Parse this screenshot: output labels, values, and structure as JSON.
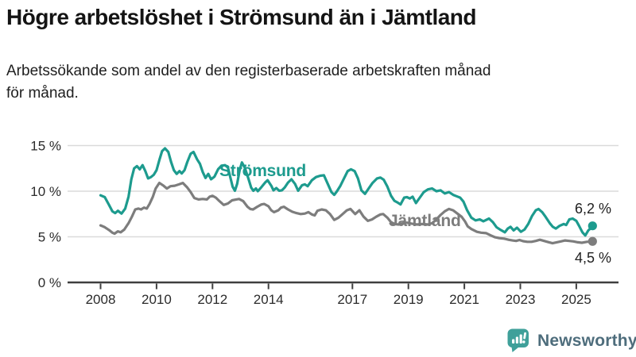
{
  "header": {
    "title": "Högre arbetslöshet i Strömsund än i Jämtland",
    "subtitle_line1": "Arbetssökande som andel av den registerbaserade arbetskraften månad",
    "subtitle_line2": "för månad."
  },
  "footer": {
    "logo_text": "Newsworthy",
    "logo_icon": "bar-chart-speech-bubble-icon",
    "logo_icon_color": "#3fa09a",
    "logo_text_color": "#4e6d7c"
  },
  "colors": {
    "accent_teal": "#1d9b8e",
    "series_gray": "#7d7d7d",
    "gridline": "#dadada",
    "axis": "#3f3f3f",
    "tick_text": "#2b2b2b",
    "title_text": "#141414"
  },
  "chart_data": {
    "type": "line",
    "title": "Högre arbetslöshet i Strömsund än i Jämtland",
    "subtitle": "Arbetssökande som andel av den registerbaserade arbetskraften månad för månad.",
    "unit": "%",
    "grid": true,
    "legend_position": "inline-labels",
    "x_axis": {
      "range": [
        2008.0,
        2026.0
      ],
      "ticks": [
        2008,
        2010,
        2012,
        2014,
        2017,
        2019,
        2021,
        2023,
        2025
      ]
    },
    "y_axis": {
      "range": [
        0,
        15
      ],
      "ticks": [
        {
          "value": 0,
          "label": "0 %"
        },
        {
          "value": 5,
          "label": "5 %"
        },
        {
          "value": 10,
          "label": "10 %"
        },
        {
          "value": 15,
          "label": "15 %"
        }
      ]
    },
    "series": [
      {
        "name": "Strömsund",
        "color": "#1d9b8e",
        "end_label": "6,2 %",
        "end_value": 6.2,
        "points": [
          [
            2008.0,
            9.55
          ],
          [
            2008.15,
            9.35
          ],
          [
            2008.3,
            8.5
          ],
          [
            2008.42,
            7.8
          ],
          [
            2008.52,
            7.6
          ],
          [
            2008.62,
            7.85
          ],
          [
            2008.75,
            7.55
          ],
          [
            2008.88,
            8.1
          ],
          [
            2009.0,
            9.4
          ],
          [
            2009.1,
            11.3
          ],
          [
            2009.2,
            12.5
          ],
          [
            2009.3,
            12.75
          ],
          [
            2009.4,
            12.4
          ],
          [
            2009.5,
            12.85
          ],
          [
            2009.6,
            12.2
          ],
          [
            2009.7,
            11.4
          ],
          [
            2009.8,
            11.55
          ],
          [
            2009.9,
            11.8
          ],
          [
            2010.0,
            12.3
          ],
          [
            2010.1,
            13.4
          ],
          [
            2010.2,
            14.4
          ],
          [
            2010.3,
            14.7
          ],
          [
            2010.42,
            14.3
          ],
          [
            2010.52,
            13.2
          ],
          [
            2010.62,
            12.3
          ],
          [
            2010.72,
            11.9
          ],
          [
            2010.82,
            12.2
          ],
          [
            2010.9,
            11.95
          ],
          [
            2011.0,
            12.3
          ],
          [
            2011.1,
            13.2
          ],
          [
            2011.22,
            14.1
          ],
          [
            2011.32,
            14.3
          ],
          [
            2011.45,
            13.5
          ],
          [
            2011.55,
            13.0
          ],
          [
            2011.65,
            12.1
          ],
          [
            2011.75,
            11.45
          ],
          [
            2011.85,
            11.9
          ],
          [
            2011.95,
            11.3
          ],
          [
            2012.07,
            11.6
          ],
          [
            2012.2,
            12.4
          ],
          [
            2012.32,
            12.8
          ],
          [
            2012.45,
            12.85
          ],
          [
            2012.55,
            12.6
          ],
          [
            2012.63,
            11.6
          ],
          [
            2012.72,
            10.5
          ],
          [
            2012.8,
            10.05
          ],
          [
            2012.88,
            10.8
          ],
          [
            2012.97,
            12.3
          ],
          [
            2013.05,
            13.15
          ],
          [
            2013.15,
            12.6
          ],
          [
            2013.28,
            11.4
          ],
          [
            2013.38,
            10.4
          ],
          [
            2013.46,
            10.05
          ],
          [
            2013.55,
            10.3
          ],
          [
            2013.62,
            10.0
          ],
          [
            2013.75,
            10.45
          ],
          [
            2013.88,
            10.95
          ],
          [
            2013.97,
            11.2
          ],
          [
            2014.1,
            10.6
          ],
          [
            2014.18,
            10.1
          ],
          [
            2014.28,
            10.35
          ],
          [
            2014.38,
            10.05
          ],
          [
            2014.48,
            10.1
          ],
          [
            2014.58,
            10.4
          ],
          [
            2014.7,
            10.95
          ],
          [
            2014.82,
            11.3
          ],
          [
            2014.95,
            10.8
          ],
          [
            2015.06,
            10.05
          ],
          [
            2015.2,
            10.65
          ],
          [
            2015.3,
            10.75
          ],
          [
            2015.4,
            10.55
          ],
          [
            2015.55,
            11.2
          ],
          [
            2015.7,
            11.55
          ],
          [
            2015.85,
            11.7
          ],
          [
            2015.98,
            11.75
          ],
          [
            2016.12,
            10.8
          ],
          [
            2016.25,
            9.9
          ],
          [
            2016.35,
            9.6
          ],
          [
            2016.45,
            10.0
          ],
          [
            2016.57,
            10.6
          ],
          [
            2016.7,
            11.4
          ],
          [
            2016.83,
            12.2
          ],
          [
            2016.95,
            12.4
          ],
          [
            2017.08,
            12.2
          ],
          [
            2017.2,
            11.4
          ],
          [
            2017.32,
            10.1
          ],
          [
            2017.45,
            9.7
          ],
          [
            2017.58,
            10.3
          ],
          [
            2017.72,
            10.9
          ],
          [
            2017.88,
            11.4
          ],
          [
            2018.0,
            11.5
          ],
          [
            2018.12,
            11.25
          ],
          [
            2018.25,
            10.5
          ],
          [
            2018.38,
            9.5
          ],
          [
            2018.5,
            8.95
          ],
          [
            2018.62,
            8.75
          ],
          [
            2018.72,
            8.55
          ],
          [
            2018.85,
            9.3
          ],
          [
            2018.95,
            9.35
          ],
          [
            2019.05,
            9.2
          ],
          [
            2019.15,
            9.4
          ],
          [
            2019.27,
            8.7
          ],
          [
            2019.42,
            9.35
          ],
          [
            2019.55,
            9.9
          ],
          [
            2019.7,
            10.2
          ],
          [
            2019.85,
            10.3
          ],
          [
            2020.0,
            10.0
          ],
          [
            2020.15,
            10.1
          ],
          [
            2020.3,
            9.75
          ],
          [
            2020.45,
            9.9
          ],
          [
            2020.6,
            9.6
          ],
          [
            2020.72,
            9.45
          ],
          [
            2020.85,
            9.3
          ],
          [
            2020.97,
            8.85
          ],
          [
            2021.1,
            7.9
          ],
          [
            2021.25,
            7.1
          ],
          [
            2021.4,
            6.8
          ],
          [
            2021.55,
            6.9
          ],
          [
            2021.68,
            6.7
          ],
          [
            2021.88,
            7.0
          ],
          [
            2022.02,
            6.6
          ],
          [
            2022.15,
            6.05
          ],
          [
            2022.3,
            5.75
          ],
          [
            2022.45,
            5.5
          ],
          [
            2022.55,
            5.9
          ],
          [
            2022.65,
            6.1
          ],
          [
            2022.76,
            5.7
          ],
          [
            2022.88,
            6.0
          ],
          [
            2023.02,
            5.55
          ],
          [
            2023.15,
            5.8
          ],
          [
            2023.28,
            6.4
          ],
          [
            2023.42,
            7.3
          ],
          [
            2023.55,
            7.9
          ],
          [
            2023.65,
            8.05
          ],
          [
            2023.78,
            7.7
          ],
          [
            2023.9,
            7.2
          ],
          [
            2024.05,
            6.5
          ],
          [
            2024.16,
            6.1
          ],
          [
            2024.27,
            5.9
          ],
          [
            2024.4,
            6.2
          ],
          [
            2024.55,
            6.4
          ],
          [
            2024.64,
            6.3
          ],
          [
            2024.75,
            6.9
          ],
          [
            2024.87,
            7.0
          ],
          [
            2025.0,
            6.75
          ],
          [
            2025.1,
            6.2
          ],
          [
            2025.22,
            5.5
          ],
          [
            2025.32,
            5.15
          ],
          [
            2025.43,
            5.7
          ],
          [
            2025.52,
            5.95
          ],
          [
            2025.58,
            6.2
          ]
        ]
      },
      {
        "name": "Jämtland",
        "color": "#7d7d7d",
        "end_label": "4,5 %",
        "end_value": 4.5,
        "points": [
          [
            2008.0,
            6.25
          ],
          [
            2008.15,
            6.05
          ],
          [
            2008.3,
            5.75
          ],
          [
            2008.42,
            5.45
          ],
          [
            2008.5,
            5.35
          ],
          [
            2008.62,
            5.6
          ],
          [
            2008.72,
            5.5
          ],
          [
            2008.85,
            5.8
          ],
          [
            2009.0,
            6.5
          ],
          [
            2009.12,
            7.2
          ],
          [
            2009.24,
            8.0
          ],
          [
            2009.35,
            8.1
          ],
          [
            2009.45,
            8.0
          ],
          [
            2009.55,
            8.2
          ],
          [
            2009.65,
            8.1
          ],
          [
            2009.75,
            8.6
          ],
          [
            2009.87,
            9.4
          ],
          [
            2009.97,
            10.3
          ],
          [
            2010.1,
            10.9
          ],
          [
            2010.25,
            10.6
          ],
          [
            2010.37,
            10.3
          ],
          [
            2010.5,
            10.55
          ],
          [
            2010.65,
            10.6
          ],
          [
            2010.8,
            10.75
          ],
          [
            2010.94,
            10.9
          ],
          [
            2011.1,
            10.4
          ],
          [
            2011.22,
            9.9
          ],
          [
            2011.35,
            9.25
          ],
          [
            2011.5,
            9.1
          ],
          [
            2011.65,
            9.15
          ],
          [
            2011.8,
            9.1
          ],
          [
            2011.9,
            9.4
          ],
          [
            2012.0,
            9.5
          ],
          [
            2012.12,
            9.3
          ],
          [
            2012.25,
            8.9
          ],
          [
            2012.4,
            8.5
          ],
          [
            2012.55,
            8.65
          ],
          [
            2012.7,
            9.0
          ],
          [
            2012.85,
            9.1
          ],
          [
            2012.95,
            9.15
          ],
          [
            2013.1,
            8.9
          ],
          [
            2013.25,
            8.3
          ],
          [
            2013.35,
            8.05
          ],
          [
            2013.45,
            8.0
          ],
          [
            2013.6,
            8.3
          ],
          [
            2013.75,
            8.55
          ],
          [
            2013.85,
            8.6
          ],
          [
            2014.0,
            8.35
          ],
          [
            2014.1,
            7.9
          ],
          [
            2014.2,
            7.7
          ],
          [
            2014.35,
            7.9
          ],
          [
            2014.45,
            8.2
          ],
          [
            2014.55,
            8.3
          ],
          [
            2014.7,
            8.0
          ],
          [
            2014.85,
            7.75
          ],
          [
            2015.0,
            7.6
          ],
          [
            2015.15,
            7.5
          ],
          [
            2015.3,
            7.55
          ],
          [
            2015.43,
            7.7
          ],
          [
            2015.55,
            7.45
          ],
          [
            2015.65,
            7.35
          ],
          [
            2015.75,
            7.85
          ],
          [
            2015.9,
            8.0
          ],
          [
            2016.05,
            7.9
          ],
          [
            2016.2,
            7.5
          ],
          [
            2016.35,
            6.85
          ],
          [
            2016.5,
            7.1
          ],
          [
            2016.65,
            7.5
          ],
          [
            2016.8,
            7.9
          ],
          [
            2016.93,
            8.05
          ],
          [
            2017.1,
            7.5
          ],
          [
            2017.25,
            7.9
          ],
          [
            2017.4,
            7.2
          ],
          [
            2017.55,
            6.75
          ],
          [
            2017.7,
            6.9
          ],
          [
            2017.85,
            7.2
          ],
          [
            2018.0,
            7.45
          ],
          [
            2018.1,
            7.5
          ],
          [
            2018.25,
            7.1
          ],
          [
            2018.38,
            6.6
          ],
          [
            2018.52,
            6.4
          ],
          [
            2018.65,
            6.35
          ],
          [
            2018.8,
            6.5
          ],
          [
            2018.95,
            6.55
          ],
          [
            2019.1,
            6.45
          ],
          [
            2019.3,
            6.35
          ],
          [
            2019.5,
            6.4
          ],
          [
            2019.7,
            6.35
          ],
          [
            2019.85,
            6.5
          ],
          [
            2020.0,
            6.9
          ],
          [
            2020.15,
            7.4
          ],
          [
            2020.3,
            7.8
          ],
          [
            2020.45,
            8.05
          ],
          [
            2020.6,
            7.9
          ],
          [
            2020.75,
            7.55
          ],
          [
            2020.9,
            7.2
          ],
          [
            2021.02,
            6.7
          ],
          [
            2021.12,
            6.15
          ],
          [
            2021.25,
            5.85
          ],
          [
            2021.45,
            5.55
          ],
          [
            2021.6,
            5.45
          ],
          [
            2021.78,
            5.4
          ],
          [
            2021.95,
            5.15
          ],
          [
            2022.1,
            4.95
          ],
          [
            2022.25,
            4.85
          ],
          [
            2022.42,
            4.8
          ],
          [
            2022.58,
            4.68
          ],
          [
            2022.72,
            4.6
          ],
          [
            2022.85,
            4.55
          ],
          [
            2022.97,
            4.65
          ],
          [
            2023.1,
            4.52
          ],
          [
            2023.25,
            4.45
          ],
          [
            2023.4,
            4.45
          ],
          [
            2023.55,
            4.55
          ],
          [
            2023.7,
            4.68
          ],
          [
            2023.85,
            4.55
          ],
          [
            2024.0,
            4.42
          ],
          [
            2024.15,
            4.3
          ],
          [
            2024.3,
            4.4
          ],
          [
            2024.45,
            4.5
          ],
          [
            2024.6,
            4.6
          ],
          [
            2024.75,
            4.55
          ],
          [
            2024.9,
            4.5
          ],
          [
            2025.05,
            4.4
          ],
          [
            2025.2,
            4.35
          ],
          [
            2025.38,
            4.45
          ],
          [
            2025.58,
            4.5
          ]
        ]
      }
    ]
  }
}
